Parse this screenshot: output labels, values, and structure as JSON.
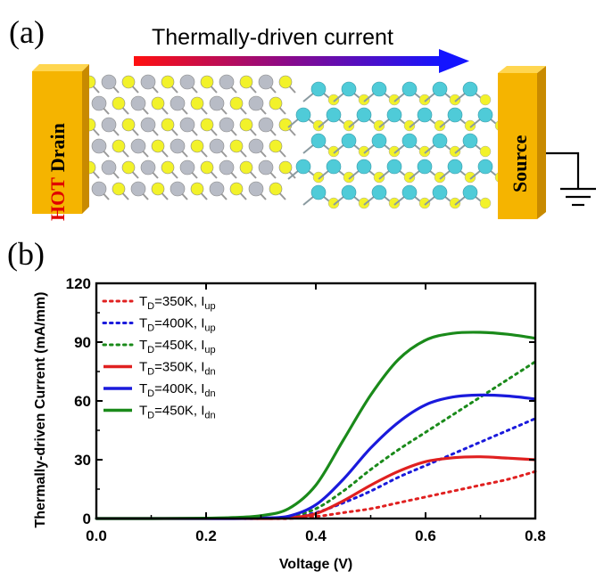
{
  "panel_a": {
    "label": "(a)",
    "arrow_label": "Thermally-driven current",
    "drain_hot": "HOT",
    "drain_word": "Drain",
    "source_word": "Source",
    "colors": {
      "hot": "#e00000",
      "block": "#f5b400",
      "arrow_start": "#ff1010",
      "arrow_end": "#1414ff",
      "atom_s": "#f2f22a",
      "atom_metal_left": "#b8bcc6",
      "atom_metal_right": "#4fcbd8"
    }
  },
  "panel_b": {
    "label": "(b)"
  },
  "chart_data": {
    "type": "line",
    "xlabel": "Voltage (V)",
    "ylabel": "Thermally-driven Current (mA/mm)",
    "xlim": [
      0.0,
      0.8
    ],
    "ylim": [
      0,
      120
    ],
    "xticks": [
      0.0,
      0.2,
      0.4,
      0.6,
      0.8
    ],
    "xtick_labels": [
      "0.0",
      "0.2",
      "0.4",
      "0.6",
      "0.8"
    ],
    "yticks": [
      0,
      30,
      60,
      90,
      120
    ],
    "ytick_labels": [
      "0",
      "30",
      "60",
      "90",
      "120"
    ],
    "legend_position": "top-left",
    "x": [
      0.0,
      0.05,
      0.1,
      0.15,
      0.2,
      0.25,
      0.3,
      0.35,
      0.4,
      0.45,
      0.5,
      0.55,
      0.6,
      0.65,
      0.7,
      0.75,
      0.8
    ],
    "series": [
      {
        "name_main": "T",
        "name_sub1": "D",
        "name_mid": "=350K, I",
        "name_sub2": "up",
        "style": "dotted",
        "color": "#e02020",
        "values": [
          0,
          0,
          0,
          0,
          0,
          0,
          0,
          0,
          1,
          3,
          5,
          8,
          11,
          14,
          17,
          20,
          24
        ]
      },
      {
        "name_main": "T",
        "name_sub1": "D",
        "name_mid": "=400K, I",
        "name_sub2": "up",
        "style": "dotted",
        "color": "#1a1adc",
        "values": [
          0,
          0,
          0,
          0,
          0,
          0,
          0,
          0.5,
          3,
          8,
          14,
          21,
          27,
          33,
          39,
          45,
          51
        ]
      },
      {
        "name_main": "T",
        "name_sub1": "D",
        "name_mid": "=450K, I",
        "name_sub2": "up",
        "style": "dotted",
        "color": "#1a8a1a",
        "values": [
          0,
          0,
          0,
          0,
          0,
          0,
          0.2,
          1,
          5,
          14,
          25,
          35,
          44,
          53,
          62,
          71,
          80
        ]
      },
      {
        "name_main": "T",
        "name_sub1": "D",
        "name_mid": "=350K, I",
        "name_sub2": "dn",
        "style": "solid",
        "color": "#e02020",
        "values": [
          0,
          0,
          0,
          0,
          0,
          0,
          0,
          0.3,
          2.5,
          9,
          17,
          24,
          29,
          31,
          31.5,
          30.8,
          30
        ]
      },
      {
        "name_main": "T",
        "name_sub1": "D",
        "name_mid": "=400K, I",
        "name_sub2": "dn",
        "style": "solid",
        "color": "#1a1adc",
        "values": [
          0,
          0,
          0,
          0,
          0,
          0,
          0.3,
          1.2,
          7,
          20,
          36,
          49,
          58,
          62,
          63,
          62.5,
          61
        ]
      },
      {
        "name_main": "T",
        "name_sub1": "D",
        "name_mid": "=450K, I",
        "name_sub2": "dn",
        "style": "solid",
        "color": "#1a8a1a",
        "values": [
          0,
          0,
          0,
          0.1,
          0.2,
          0.5,
          1.5,
          5,
          17,
          40,
          63,
          81,
          91,
          94.5,
          95,
          94,
          92
        ]
      }
    ]
  }
}
